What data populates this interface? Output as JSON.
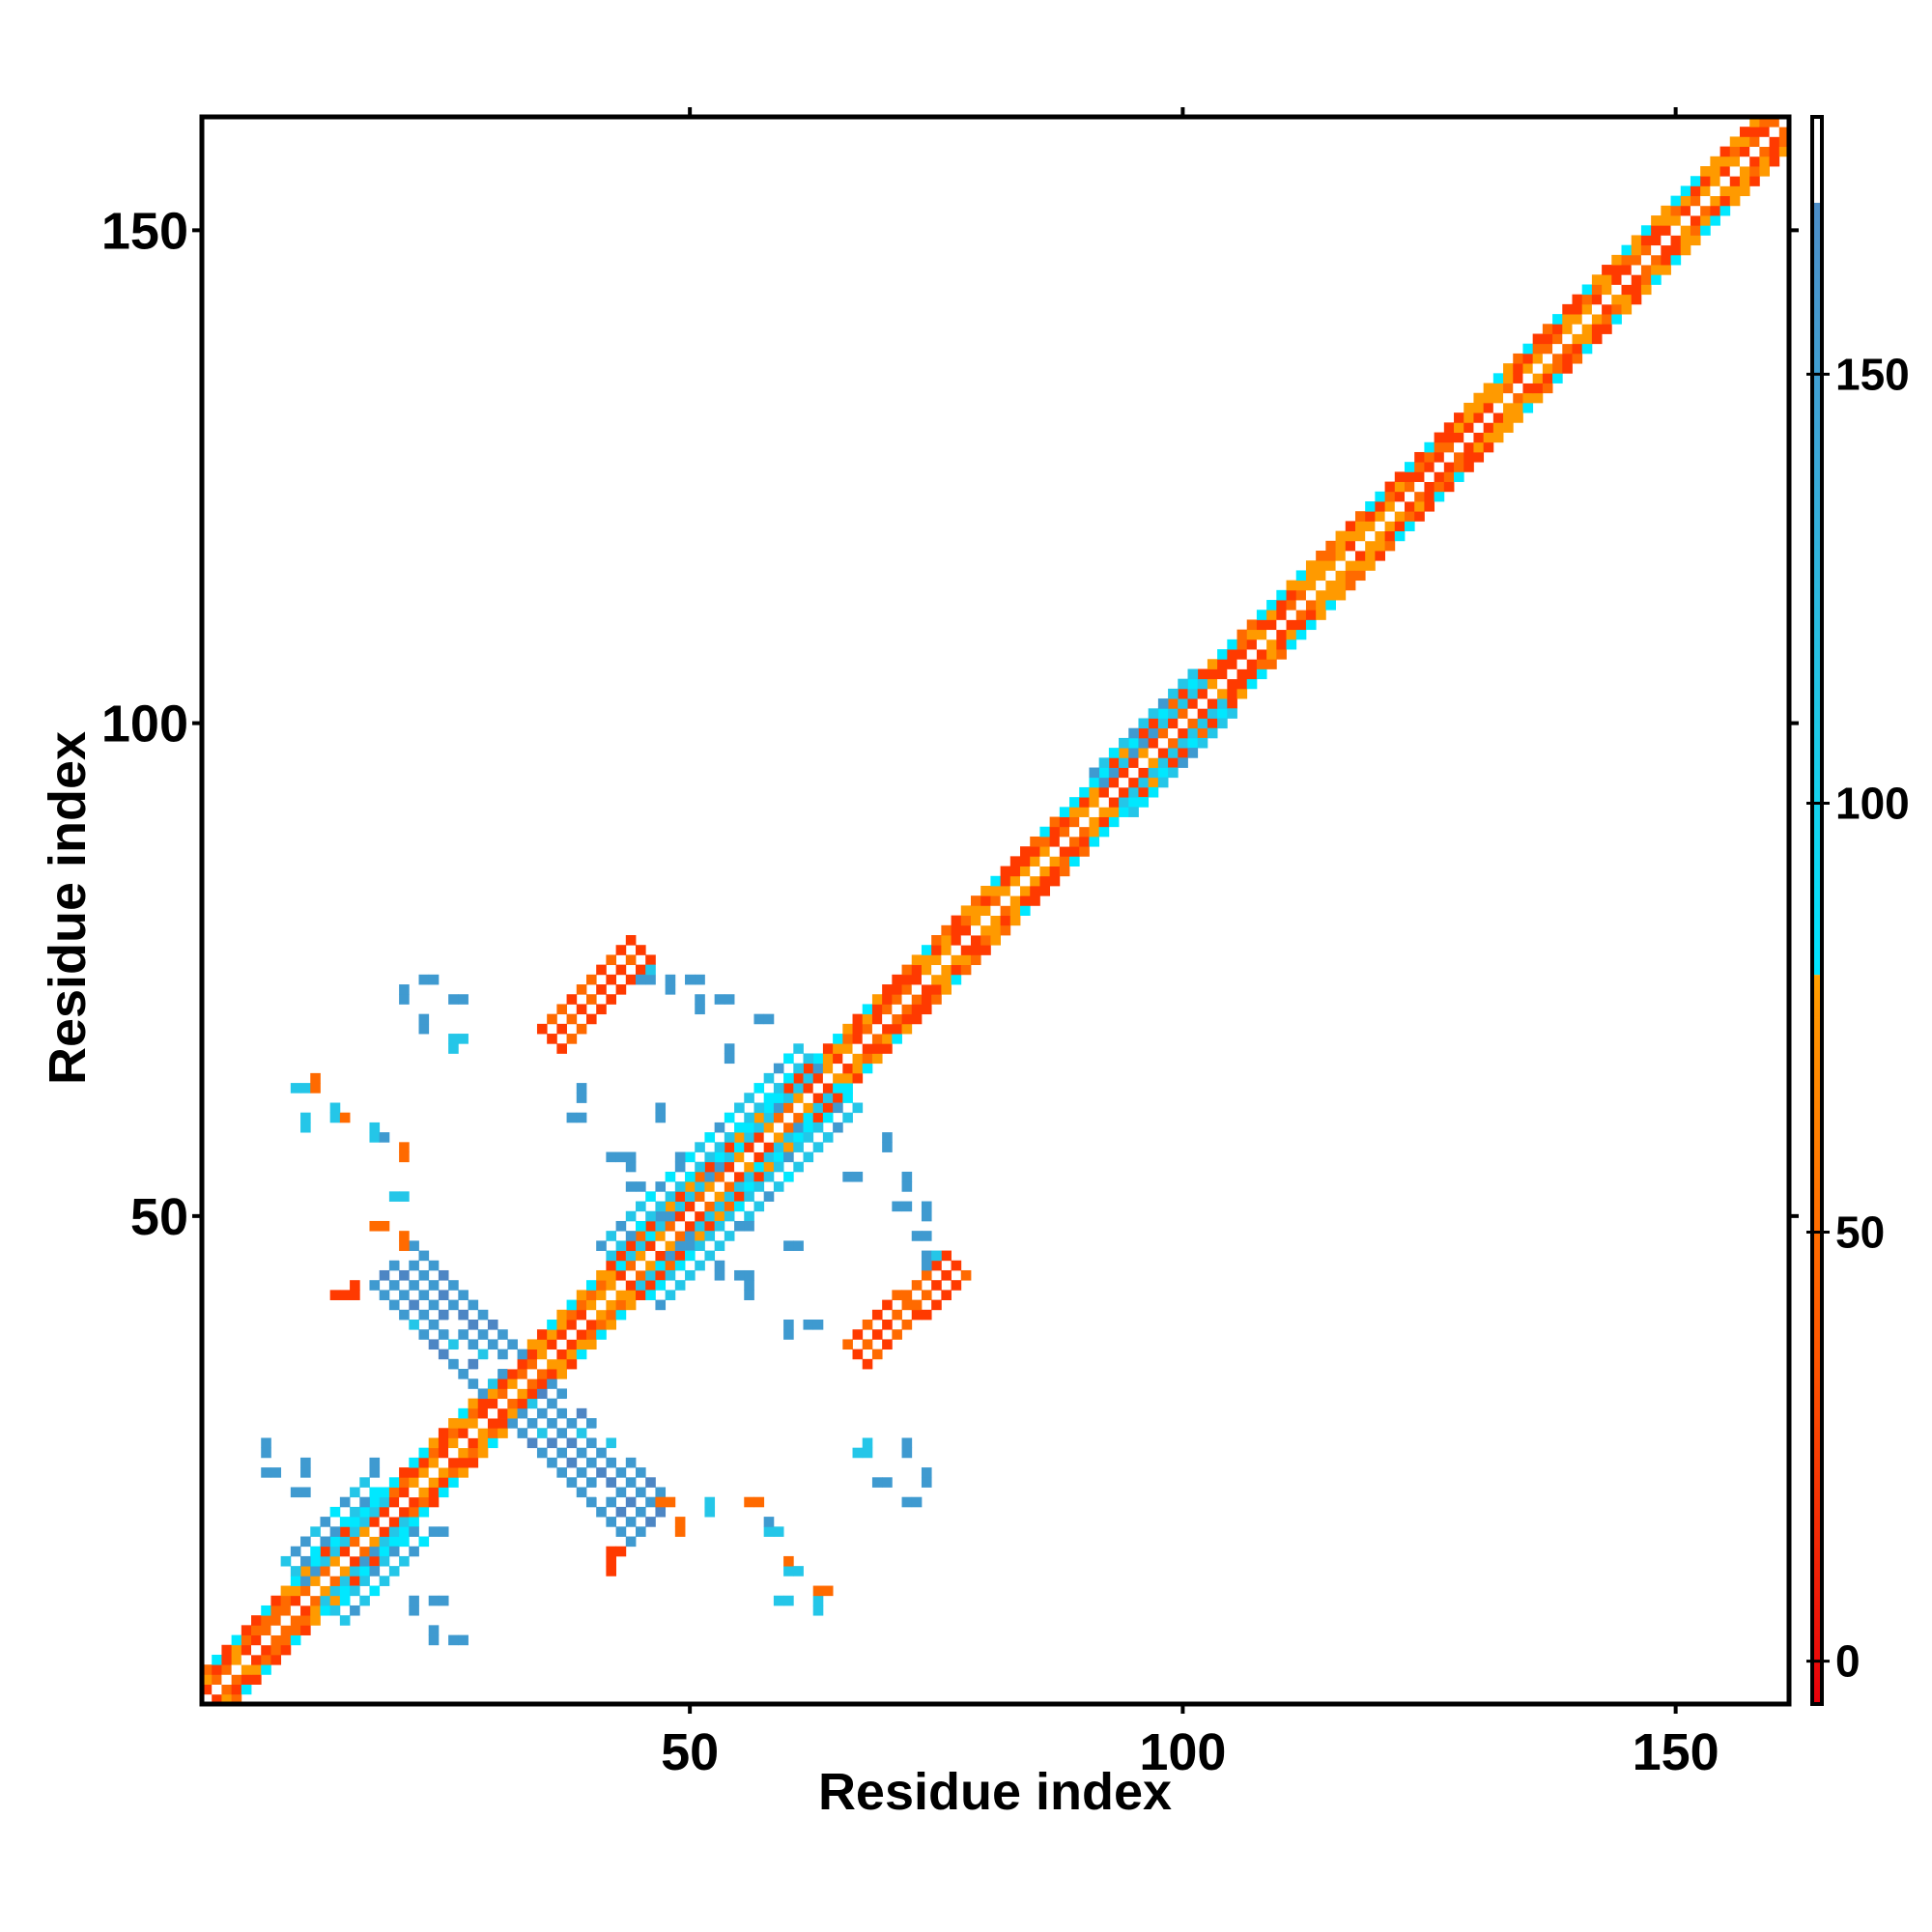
{
  "chart_data": {
    "type": "heatmap",
    "title": "",
    "xlabel": "Residue index",
    "ylabel": "Residue index",
    "xlim": [
      1,
      161
    ],
    "ylim": [
      1,
      161
    ],
    "xticks": [
      50,
      100,
      150
    ],
    "yticks": [
      50,
      100,
      150
    ],
    "colorbar": {
      "ticks": [
        0,
        50,
        100,
        150
      ],
      "range": [
        -5,
        180
      ],
      "bands": [
        {
          "from": -5,
          "to": 75,
          "colors": [
            "#e8000b",
            "#ff5500",
            "#ff9400"
          ]
        },
        {
          "from": 75,
          "to": 80,
          "colors": [
            "#ff9400",
            "#ffa000"
          ]
        },
        {
          "from": 80,
          "to": 170,
          "colors": [
            "#00e5ff",
            "#1fc8e6",
            "#3aa8d8",
            "#4c8dc8"
          ]
        },
        {
          "from": 170,
          "to": 180,
          "colors": [
            "#ffffff"
          ]
        }
      ]
    },
    "features": [
      {
        "name": "diagonal",
        "type": "band",
        "from": [
          1,
          1
        ],
        "to": [
          161,
          161
        ],
        "width": 3
      },
      {
        "name": "helix-segment-1",
        "type": "band",
        "from": [
          12,
          12
        ],
        "to": [
          20,
          20
        ],
        "width": 6,
        "value": 120
      },
      {
        "name": "helix-segment-2",
        "type": "band",
        "from": [
          44,
          44
        ],
        "to": [
          64,
          64
        ],
        "width": 7,
        "value": 115
      },
      {
        "name": "helix-segment-3",
        "type": "band",
        "from": [
          93,
          93
        ],
        "to": [
          103,
          103
        ],
        "width": 5,
        "value": 120
      },
      {
        "name": "anti-diagonal-sheet",
        "type": "band",
        "from": [
          20,
          45
        ],
        "to": [
          46,
          19
        ],
        "width": 4,
        "value": 150
      },
      {
        "name": "sheet-upper",
        "type": "band",
        "from": [
          36,
          68
        ],
        "to": [
          45,
          77
        ],
        "width": 3,
        "value": 10
      },
      {
        "name": "sheet-lower",
        "type": "band",
        "from": [
          67,
          36
        ],
        "to": [
          77,
          45
        ],
        "width": 3,
        "value": 10
      }
    ],
    "scatter_contacts": [
      [
        23,
        74,
        150
      ],
      [
        26,
        72,
        150
      ],
      [
        10,
        63,
        120
      ],
      [
        14,
        60,
        40
      ],
      [
        18,
        58,
        150
      ],
      [
        20,
        52,
        120
      ],
      [
        18,
        49,
        40
      ],
      [
        14,
        42,
        20
      ],
      [
        38,
        60,
        150
      ],
      [
        42,
        56,
        150
      ],
      [
        44,
        53,
        150
      ],
      [
        47,
        50,
        150
      ],
      [
        55,
        44,
        150
      ],
      [
        62,
        39,
        150
      ],
      [
        69,
        23,
        150
      ],
      [
        72,
        21,
        150
      ],
      [
        58,
        18,
        120
      ],
      [
        60,
        14,
        120
      ],
      [
        63,
        12,
        40
      ],
      [
        59,
        11,
        120
      ],
      [
        26,
        7,
        150
      ],
      [
        24,
        11,
        150
      ],
      [
        7,
        24,
        150
      ],
      [
        10,
        22,
        150
      ],
      [
        42,
        16,
        20
      ],
      [
        47,
        21,
        40
      ],
      [
        55,
        49,
        150
      ],
      [
        60,
        47,
        150
      ],
      [
        66,
        54,
        150
      ],
      [
        71,
        51,
        150
      ],
      [
        73,
        48,
        150
      ],
      [
        74,
        46,
        120
      ],
      [
        26,
        68,
        120
      ],
      [
        45,
        74,
        150
      ],
      [
        50,
        74,
        150
      ],
      [
        53,
        72,
        150
      ],
      [
        57,
        70,
        150
      ],
      [
        67,
        26,
        120
      ],
      [
        24,
        18,
        150
      ],
      [
        56,
        21,
        40
      ]
    ]
  }
}
